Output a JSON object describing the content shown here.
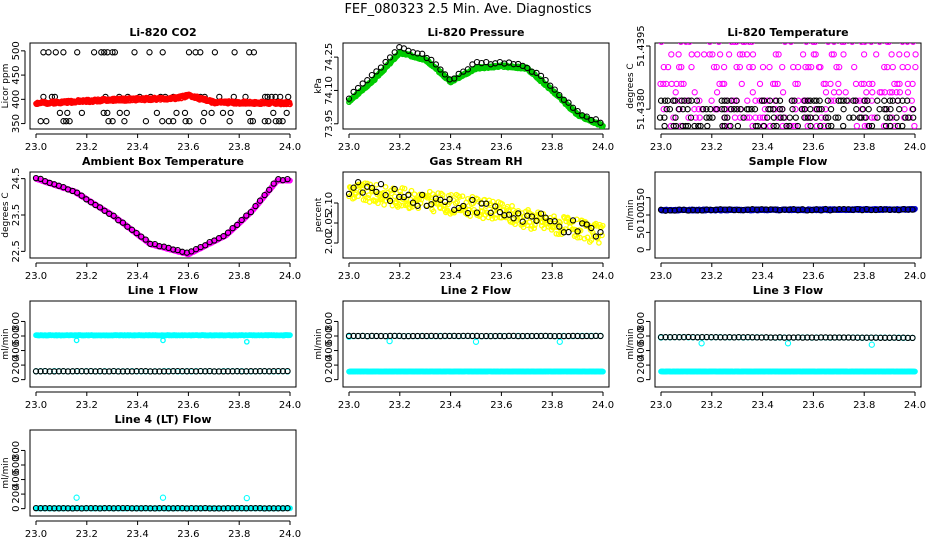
{
  "page_title": "FEF_080323  2.5 Min. Ave. Diagnostics",
  "chart_data": [
    {
      "type": "scatter",
      "title": "Li-820 CO2",
      "ylabel": "Licor ppm",
      "xlim": [
        23,
        24
      ],
      "ylim": [
        345,
        510
      ],
      "xticks": [
        "23.0",
        "23.2",
        "23.4",
        "23.6",
        "23.8",
        "24.0"
      ],
      "yticks": [
        {
          "v": 350,
          "label": "350"
        },
        {
          "v": 400,
          "label": "400"
        },
        {
          "v": 450,
          "label": "450"
        },
        {
          "v": 500,
          "label": "500"
        }
      ],
      "series": [
        {
          "name": "avg",
          "color": "#000000",
          "gen": {
            "kind": "levels",
            "levels": [
              355,
              372,
              405,
              497
            ],
            "step": 0.015,
            "p": 0.34,
            "seed": 1
          }
        },
        {
          "name": "red",
          "color": "#ff0000",
          "dense": true,
          "gen": {
            "kind": "curve",
            "pts": [
              [
                23,
                392
              ],
              [
                23.3,
                399
              ],
              [
                23.55,
                402
              ],
              [
                23.6,
                408
              ],
              [
                23.7,
                394
              ],
              [
                24,
                392
              ]
            ],
            "noise": 3,
            "step": 0.002,
            "seed": 2
          }
        }
      ]
    },
    {
      "type": "scatter",
      "title": "Li-820 Pressure",
      "ylabel": "kPa",
      "xlim": [
        23,
        24
      ],
      "ylim": [
        73.94,
        74.3
      ],
      "xticks": [
        "23.0",
        "23.2",
        "23.4",
        "23.6",
        "23.8",
        "24.0"
      ],
      "yticks": [
        {
          "v": 73.95,
          "label": "73.95"
        },
        {
          "v": 74.1,
          "label": "74.10"
        },
        {
          "v": 74.25,
          "label": "74.25"
        }
      ],
      "series": [
        {
          "name": "green",
          "color": "#00cc00",
          "dense": true,
          "gen": {
            "kind": "curve",
            "pts": [
              [
                23,
                74.05
              ],
              [
                23.1,
                74.15
              ],
              [
                23.2,
                74.27
              ],
              [
                23.3,
                74.24
              ],
              [
                23.4,
                74.14
              ],
              [
                23.5,
                74.2
              ],
              [
                23.6,
                74.21
              ],
              [
                23.7,
                74.2
              ],
              [
                23.8,
                74.1
              ],
              [
                23.9,
                73.99
              ],
              [
                24,
                73.94
              ]
            ],
            "noise": 0.005,
            "step": 0.002,
            "seed": 3
          }
        },
        {
          "name": "avg",
          "color": "#000000",
          "gen": {
            "kind": "curve",
            "pts": [
              [
                23,
                74.07
              ],
              [
                23.1,
                74.18
              ],
              [
                23.2,
                74.29
              ],
              [
                23.3,
                74.26
              ],
              [
                23.4,
                74.15
              ],
              [
                23.5,
                74.22
              ],
              [
                23.6,
                74.23
              ],
              [
                23.7,
                74.21
              ],
              [
                23.8,
                74.12
              ],
              [
                23.9,
                74.0
              ],
              [
                24,
                73.95
              ]
            ],
            "noise": 0.008,
            "step": 0.018,
            "seed": 4
          }
        }
      ]
    },
    {
      "type": "scatter",
      "title": "Li-820 Temperature",
      "ylabel": "degrees C",
      "xlim": [
        23,
        24
      ],
      "ylim": [
        51.4376,
        51.4395
      ],
      "xticks": [
        "23.0",
        "23.2",
        "23.4",
        "23.6",
        "23.8",
        "24.0"
      ],
      "yticks": [
        {
          "v": 51.438,
          "label": "51.4380"
        },
        {
          "v": 51.4395,
          "label": "51.4395"
        }
      ],
      "series": [
        {
          "name": "magenta",
          "color": "#ff00ff",
          "gen": {
            "kind": "levels",
            "levels": [
              51.4376,
              51.4378,
              51.438,
              51.4382,
              51.4384,
              51.4386,
              51.439,
              51.4393,
              51.4396
            ],
            "step": 0.01,
            "p": 0.28,
            "seed": 5
          }
        },
        {
          "name": "avg",
          "color": "#000000",
          "gen": {
            "kind": "levels",
            "levels": [
              51.4376,
              51.4378,
              51.438,
              51.4382
            ],
            "step": 0.012,
            "p": 0.45,
            "seed": 6
          }
        }
      ]
    },
    {
      "type": "scatter",
      "title": "Ambient Box Temperature",
      "ylabel": "degrees C",
      "xlim": [
        23,
        24
      ],
      "ylim": [
        22.4,
        24.6
      ],
      "xticks": [
        "23.0",
        "23.2",
        "23.4",
        "23.6",
        "23.8",
        "24.0"
      ],
      "yticks": [
        {
          "v": 22.5,
          "label": "22.5"
        },
        {
          "v": 23.5,
          "label": "23.5"
        },
        {
          "v": 24.5,
          "label": "24.5"
        }
      ],
      "series": [
        {
          "name": "magenta",
          "color": "#ff00ff",
          "dense": true,
          "gen": {
            "kind": "curve",
            "pts": [
              [
                23,
                24.5
              ],
              [
                23.15,
                24.15
              ],
              [
                23.3,
                23.5
              ],
              [
                23.45,
                22.7
              ],
              [
                23.6,
                22.42
              ],
              [
                23.75,
                22.95
              ],
              [
                23.85,
                23.6
              ],
              [
                23.95,
                24.45
              ],
              [
                24,
                24.45
              ]
            ],
            "noise": 0.01,
            "step": 0.002,
            "seed": 7
          }
        },
        {
          "name": "avg",
          "color": "#000000",
          "gen": {
            "kind": "curve",
            "pts": [
              [
                23,
                24.52
              ],
              [
                23.15,
                24.15
              ],
              [
                23.3,
                23.5
              ],
              [
                23.45,
                22.72
              ],
              [
                23.6,
                22.44
              ],
              [
                23.75,
                22.97
              ],
              [
                23.85,
                23.62
              ],
              [
                23.95,
                24.47
              ],
              [
                24,
                24.47
              ]
            ],
            "noise": 0.02,
            "step": 0.018,
            "seed": 8
          }
        }
      ]
    },
    {
      "type": "scatter",
      "title": "Gas Stream RH",
      "ylabel": "percent",
      "xlim": [
        23,
        24
      ],
      "ylim": [
        1.97,
        2.17
      ],
      "xticks": [
        "23.0",
        "23.2",
        "23.4",
        "23.6",
        "23.8",
        "24.0"
      ],
      "yticks": [
        {
          "v": 2.0,
          "label": "2.00"
        },
        {
          "v": 2.05,
          "label": "2.05"
        },
        {
          "v": 2.1,
          "label": "2.10"
        }
      ],
      "series": [
        {
          "name": "yellow",
          "color": "#ffff00",
          "dense": true,
          "gen": {
            "kind": "curve",
            "pts": [
              [
                23,
                2.13
              ],
              [
                23.5,
                2.09
              ],
              [
                24,
                2.02
              ]
            ],
            "noise": 0.025,
            "step": 0.003,
            "seed": 9
          }
        },
        {
          "name": "avg",
          "color": "#000000",
          "gen": {
            "kind": "curve",
            "pts": [
              [
                23,
                2.14
              ],
              [
                23.5,
                2.09
              ],
              [
                24,
                2.02
              ]
            ],
            "noise": 0.02,
            "step": 0.018,
            "seed": 10
          }
        }
      ]
    },
    {
      "type": "scatter",
      "title": "Sample Flow",
      "ylabel": "ml/min",
      "xlim": [
        23,
        24
      ],
      "ylim": [
        -15,
        215
      ],
      "xticks": [
        "23.0",
        "23.2",
        "23.4",
        "23.6",
        "23.8",
        "24.0"
      ],
      "yticks": [
        {
          "v": 0,
          "label": "0"
        },
        {
          "v": 50,
          "label": "50"
        },
        {
          "v": 100,
          "label": "100"
        },
        {
          "v": 150,
          "label": "150"
        }
      ],
      "series": [
        {
          "name": "blue",
          "color": "#0000cc",
          "dense": true,
          "gen": {
            "kind": "curve",
            "pts": [
              [
                23,
                114
              ],
              [
                24,
                116
              ]
            ],
            "noise": 2,
            "step": 0.002,
            "seed": 11
          }
        },
        {
          "name": "avg",
          "color": "#000000",
          "gen": {
            "kind": "curve",
            "pts": [
              [
                23,
                114
              ],
              [
                24,
                116
              ]
            ],
            "noise": 2,
            "step": 0.018,
            "seed": 12
          }
        }
      ]
    },
    {
      "type": "scatter",
      "title": "Line 1 Flow",
      "ylabel": "ml/min",
      "xlim": [
        23,
        24
      ],
      "ylim": [
        -60,
        1040
      ],
      "xticks": [
        "23.0",
        "23.2",
        "23.4",
        "23.6",
        "23.8",
        "24.0"
      ],
      "yticks": [
        {
          "v": 0,
          "label": "0"
        },
        {
          "v": 200,
          "label": "200"
        },
        {
          "v": 400,
          "label": "400"
        },
        {
          "v": 600,
          "label": "600"
        },
        {
          "v": 800,
          "label": "800"
        }
      ],
      "series": [
        {
          "name": "cyan",
          "color": "#00ffff",
          "dense": true,
          "gen": {
            "kind": "curve",
            "pts": [
              [
                23,
                610
              ],
              [
                24,
                610
              ]
            ],
            "noise": 3,
            "step": 0.002,
            "seed": 13
          },
          "extra": [
            [
              23.16,
              540
            ],
            [
              23.5,
              540
            ],
            [
              23.83,
              520
            ]
          ]
        },
        {
          "name": "cyan-low",
          "color": "#00ffff",
          "gen": {
            "kind": "curve",
            "pts": [
              [
                23,
                115
              ],
              [
                24,
                115
              ]
            ],
            "noise": 2,
            "step": 0.018,
            "seed": 14
          }
        },
        {
          "name": "avg",
          "color": "#000000",
          "gen": {
            "kind": "curve",
            "pts": [
              [
                23,
                115
              ],
              [
                24,
                115
              ]
            ],
            "noise": 2,
            "step": 0.018,
            "seed": 15
          }
        }
      ]
    },
    {
      "type": "scatter",
      "title": "Line 2 Flow",
      "ylabel": "ml/min",
      "xlim": [
        23,
        24
      ],
      "ylim": [
        -60,
        1040
      ],
      "xticks": [
        "23.0",
        "23.2",
        "23.4",
        "23.6",
        "23.8",
        "24.0"
      ],
      "yticks": [
        {
          "v": 0,
          "label": "0"
        },
        {
          "v": 200,
          "label": "200"
        },
        {
          "v": 400,
          "label": "400"
        },
        {
          "v": 600,
          "label": "600"
        },
        {
          "v": 800,
          "label": "800"
        }
      ],
      "series": [
        {
          "name": "cyan-low",
          "color": "#00ffff",
          "dense": true,
          "gen": {
            "kind": "curve",
            "pts": [
              [
                23,
                112
              ],
              [
                24,
                112
              ]
            ],
            "noise": 2,
            "step": 0.002,
            "seed": 16
          }
        },
        {
          "name": "cyan",
          "color": "#00ffff",
          "gen": {
            "kind": "curve",
            "pts": [
              [
                23,
                600
              ],
              [
                24,
                600
              ]
            ],
            "noise": 2,
            "step": 0.018,
            "seed": 17
          },
          "extra": [
            [
              23.0,
              590
            ],
            [
              23.16,
              530
            ],
            [
              23.5,
              520
            ],
            [
              23.83,
              520
            ]
          ]
        },
        {
          "name": "avg",
          "color": "#000000",
          "gen": {
            "kind": "curve",
            "pts": [
              [
                23,
                600
              ],
              [
                24,
                600
              ]
            ],
            "noise": 2,
            "step": 0.018,
            "seed": 18
          }
        }
      ]
    },
    {
      "type": "scatter",
      "title": "Line 3 Flow",
      "ylabel": "ml/min",
      "xlim": [
        23,
        24
      ],
      "ylim": [
        -60,
        1040
      ],
      "xticks": [
        "23.0",
        "23.2",
        "23.4",
        "23.6",
        "23.8",
        "24.0"
      ],
      "yticks": [
        {
          "v": 0,
          "label": "0"
        },
        {
          "v": 200,
          "label": "200"
        },
        {
          "v": 400,
          "label": "400"
        },
        {
          "v": 600,
          "label": "600"
        },
        {
          "v": 800,
          "label": "800"
        }
      ],
      "series": [
        {
          "name": "cyan-low",
          "color": "#00ffff",
          "dense": true,
          "gen": {
            "kind": "curve",
            "pts": [
              [
                23,
                112
              ],
              [
                24,
                112
              ]
            ],
            "noise": 2,
            "step": 0.002,
            "seed": 19
          }
        },
        {
          "name": "cyan",
          "color": "#00ffff",
          "gen": {
            "kind": "curve",
            "pts": [
              [
                23,
                585
              ],
              [
                24,
                575
              ]
            ],
            "noise": 2,
            "step": 0.018,
            "seed": 20
          },
          "extra": [
            [
              23.0,
              580
            ],
            [
              23.16,
              500
            ],
            [
              23.5,
              500
            ],
            [
              23.83,
              480
            ]
          ]
        },
        {
          "name": "avg",
          "color": "#000000",
          "gen": {
            "kind": "curve",
            "pts": [
              [
                23,
                585
              ],
              [
                24,
                575
              ]
            ],
            "noise": 2,
            "step": 0.018,
            "seed": 21
          }
        }
      ]
    },
    {
      "type": "scatter",
      "title": "Line 4 (LT) Flow",
      "ylabel": "ml/min",
      "xlim": [
        23,
        24
      ],
      "ylim": [
        -60,
        1040
      ],
      "xticks": [
        "23.0",
        "23.2",
        "23.4",
        "23.6",
        "23.8",
        "24.0"
      ],
      "yticks": [
        {
          "v": 0,
          "label": "0"
        },
        {
          "v": 200,
          "label": "200"
        },
        {
          "v": 400,
          "label": "400"
        },
        {
          "v": 600,
          "label": "600"
        },
        {
          "v": 800,
          "label": "800"
        }
      ],
      "series": [
        {
          "name": "cyan-low",
          "color": "#00ffff",
          "dense": true,
          "gen": {
            "kind": "curve",
            "pts": [
              [
                23,
                5
              ],
              [
                24,
                5
              ]
            ],
            "noise": 2,
            "step": 0.002,
            "seed": 22
          }
        },
        {
          "name": "avg",
          "color": "#000000",
          "gen": {
            "kind": "curve",
            "pts": [
              [
                23,
                5
              ],
              [
                24,
                5
              ]
            ],
            "noise": 2,
            "step": 0.018,
            "seed": 23
          }
        },
        {
          "name": "cyan",
          "color": "#00ffff",
          "gen": {
            "kind": "none"
          },
          "extra": [
            [
              23.16,
              150
            ],
            [
              23.5,
              150
            ],
            [
              23.83,
              145
            ]
          ]
        }
      ]
    }
  ]
}
